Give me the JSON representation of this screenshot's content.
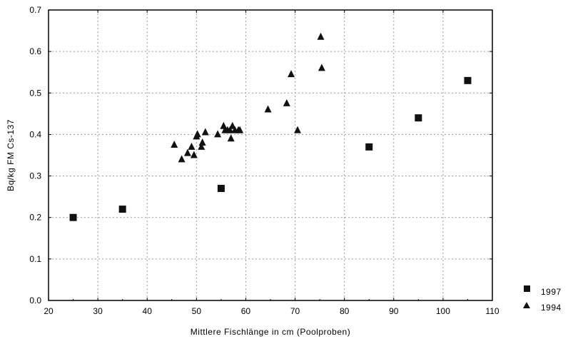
{
  "chart_data": {
    "type": "scatter",
    "xlabel": "Mittlere Fischlänge in cm (Poolproben)",
    "ylabel": "Bq/kg FM Cs-137",
    "xlim": [
      20,
      110
    ],
    "ylim": [
      0.0,
      0.7
    ],
    "xticks": [
      "20",
      "30",
      "40",
      "50",
      "60",
      "70",
      "80",
      "90",
      "100",
      "110"
    ],
    "yticks": [
      "0.0",
      "0.1",
      "0.2",
      "0.3",
      "0.4",
      "0.5",
      "0.6",
      "0.7"
    ],
    "grid": true,
    "legend_position": "bottom-right, outside plot",
    "series": [
      {
        "name": "1997",
        "marker": "square",
        "color": "#111111",
        "x": [
          25,
          35,
          55,
          85,
          95,
          105
        ],
        "y": [
          0.2,
          0.22,
          0.27,
          0.37,
          0.44,
          0.53
        ]
      },
      {
        "name": "1994",
        "marker": "triangle",
        "color": "#111111",
        "x": [
          45.5,
          47.0,
          48.2,
          49.0,
          49.5,
          50.0,
          50.2,
          51.0,
          51.2,
          51.8,
          54.3,
          55.5,
          55.8,
          56.3,
          56.8,
          57.0,
          57.3,
          57.8,
          58.5,
          58.8,
          64.5,
          68.3,
          69.2,
          70.5,
          75.2,
          75.4
        ],
        "y": [
          0.375,
          0.34,
          0.355,
          0.37,
          0.35,
          0.395,
          0.4,
          0.37,
          0.38,
          0.405,
          0.4,
          0.42,
          0.41,
          0.41,
          0.41,
          0.39,
          0.42,
          0.41,
          0.41,
          0.41,
          0.46,
          0.475,
          0.545,
          0.41,
          0.635,
          0.56
        ]
      }
    ]
  }
}
